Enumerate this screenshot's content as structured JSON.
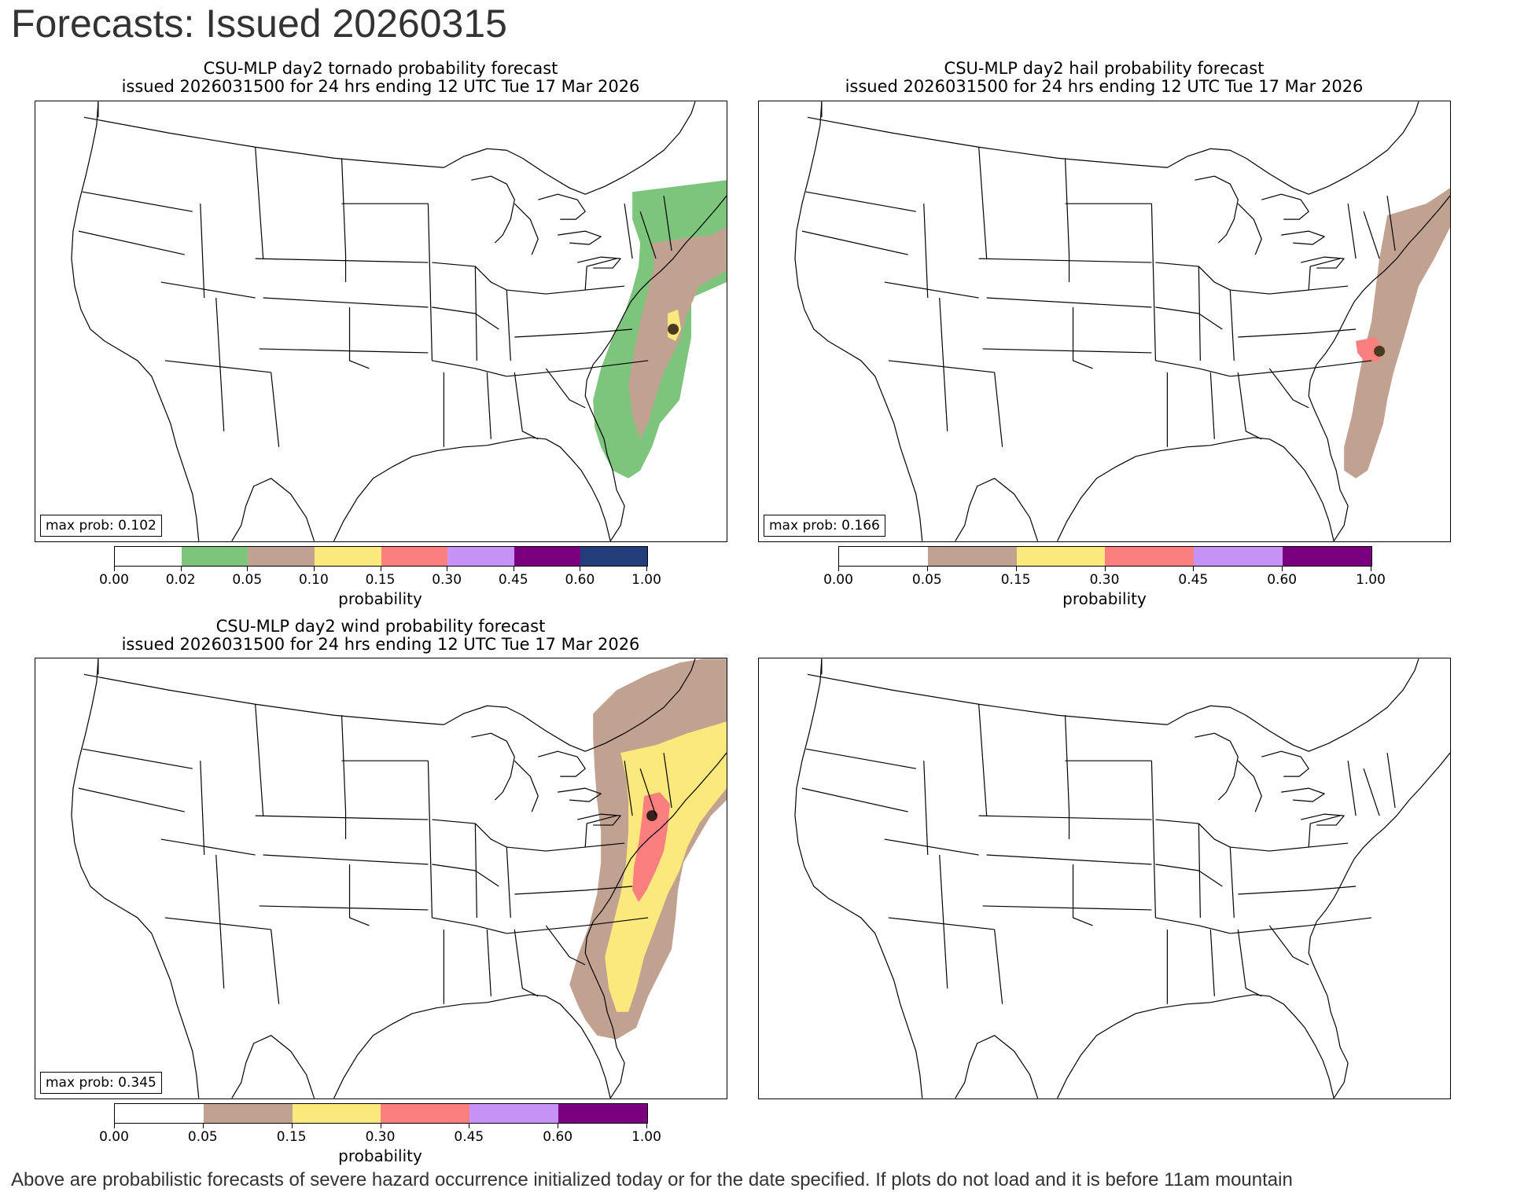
{
  "page": {
    "title": "Forecasts: Issued 20260315",
    "footer": "Above are probabilistic forecasts of severe hazard occurrence initialized today or for the date specified. If plots do not load and it is before 11am mountain"
  },
  "colors": {
    "0.02": "#7dc47d",
    "0.05": "#c1a291",
    "0.10": "#fbe97d",
    "0.15": "#fb7f7f",
    "0.30": "#c792f5",
    "0.45": "#7b0080",
    "0.60": "#243e7b",
    "map_lines": "#000000"
  },
  "panels": [
    {
      "id": "tornado",
      "title_line1": "CSU-MLP day2 tornado probability forecast",
      "title_line2": "issued 2026031500 for 24 hrs ending 12 UTC Tue 17 Mar 2026",
      "max_prob": "max prob: 0.102",
      "colorbar": {
        "ticks": [
          "0.00",
          "0.02",
          "0.05",
          "0.10",
          "0.15",
          "0.30",
          "0.45",
          "0.60",
          "1.00"
        ],
        "colors": [
          "#ffffff",
          "#7dc47d",
          "#c1a291",
          "#fbe97d",
          "#fb7f7f",
          "#c792f5",
          "#7b0080",
          "#243e7b"
        ],
        "label": "probability"
      }
    },
    {
      "id": "hail",
      "title_line1": "CSU-MLP day2 hail probability forecast",
      "title_line2": "issued 2026031500 for 24 hrs ending 12 UTC Tue 17 Mar 2026",
      "max_prob": "max prob: 0.166",
      "colorbar": {
        "ticks": [
          "0.00",
          "0.05",
          "0.15",
          "0.30",
          "0.45",
          "0.60",
          "1.00"
        ],
        "colors": [
          "#ffffff",
          "#c1a291",
          "#fbe97d",
          "#fb7f7f",
          "#c792f5",
          "#7b0080"
        ],
        "label": "probability"
      }
    },
    {
      "id": "wind",
      "title_line1": "CSU-MLP day2 wind probability forecast",
      "title_line2": "issued 2026031500 for 24 hrs ending 12 UTC Tue 17 Mar 2026",
      "max_prob": "max prob: 0.345",
      "colorbar": {
        "ticks": [
          "0.00",
          "0.05",
          "0.15",
          "0.30",
          "0.45",
          "0.60",
          "1.00"
        ],
        "colors": [
          "#ffffff",
          "#c1a291",
          "#fbe97d",
          "#fb7f7f",
          "#c792f5",
          "#7b0080"
        ],
        "label": "probability"
      }
    },
    {
      "id": "blank",
      "title_line1": "",
      "title_line2": "",
      "max_prob": ""
    }
  ]
}
